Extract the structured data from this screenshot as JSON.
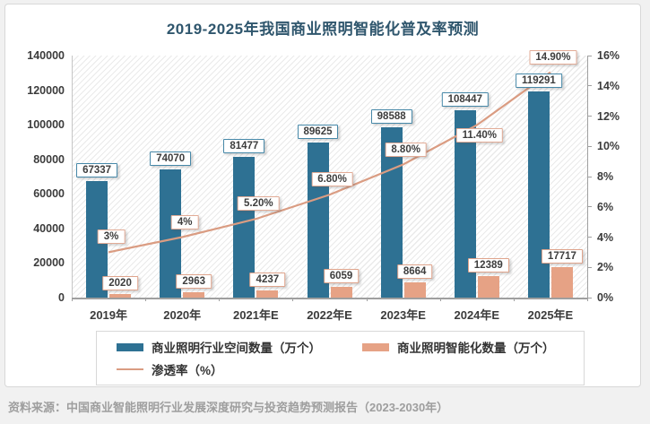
{
  "chart_data": {
    "type": "combo-bar-line",
    "title": "2019-2025年我国商业照明智能化普及率预测",
    "categories": [
      "2019年",
      "2020年",
      "2021年E",
      "2022年E",
      "2023年E",
      "2024年E",
      "2025年E"
    ],
    "series": [
      {
        "name": "商业照明行业空间数量（万个）",
        "chart_type": "bar",
        "axis": "left",
        "color": "#2e7193",
        "label_border": "#4688a8",
        "values": [
          67337,
          74070,
          81477,
          89625,
          98588,
          108447,
          119291
        ],
        "data_labels": [
          "67337",
          "74070",
          "81477",
          "89625",
          "98588",
          "108447",
          "119291"
        ]
      },
      {
        "name": "商业照明智能化数量（万个）",
        "chart_type": "bar",
        "axis": "left",
        "color": "#e6a285",
        "label_border": "#dfa48c",
        "values": [
          2020,
          2963,
          4237,
          6059,
          8664,
          12389,
          17717
        ],
        "data_labels": [
          "2020",
          "2963",
          "4237",
          "6059",
          "8664",
          "12389",
          "17717"
        ]
      },
      {
        "name": "渗透率（%）",
        "chart_type": "line",
        "axis": "right",
        "color": "#da9c82",
        "label_border": "#e2ab96",
        "values": [
          3,
          4,
          5.2,
          6.8,
          8.8,
          11.4,
          14.9
        ],
        "data_labels": [
          "3%",
          "4%",
          "5.20%",
          "6.80%",
          "8.80%",
          "11.40%",
          "14.90%"
        ],
        "label_below": [
          false,
          false,
          false,
          false,
          false,
          true,
          false
        ]
      }
    ],
    "left_axis": {
      "min": 0,
      "max": 140000,
      "step": 20000,
      "tick_labels": [
        "0",
        "20000",
        "40000",
        "60000",
        "80000",
        "100000",
        "120000",
        "140000"
      ]
    },
    "right_axis": {
      "min": 0,
      "max": 16,
      "step": 2,
      "tick_labels": [
        "0%",
        "2%",
        "4%",
        "6%",
        "8%",
        "10%",
        "12%",
        "14%",
        "16%"
      ]
    },
    "legend_position": "bottom",
    "plot_background": "diagonal-hatch",
    "grid": false
  },
  "footer": {
    "source": "资料来源：中国商业智能照明行业发展深度研究与投资趋势预测报告（2023-2030年）"
  },
  "colors": {
    "bar_primary": "#2e7193",
    "bar_secondary": "#e6a285",
    "line": "#da9c82",
    "title_text": "#2f566d"
  }
}
